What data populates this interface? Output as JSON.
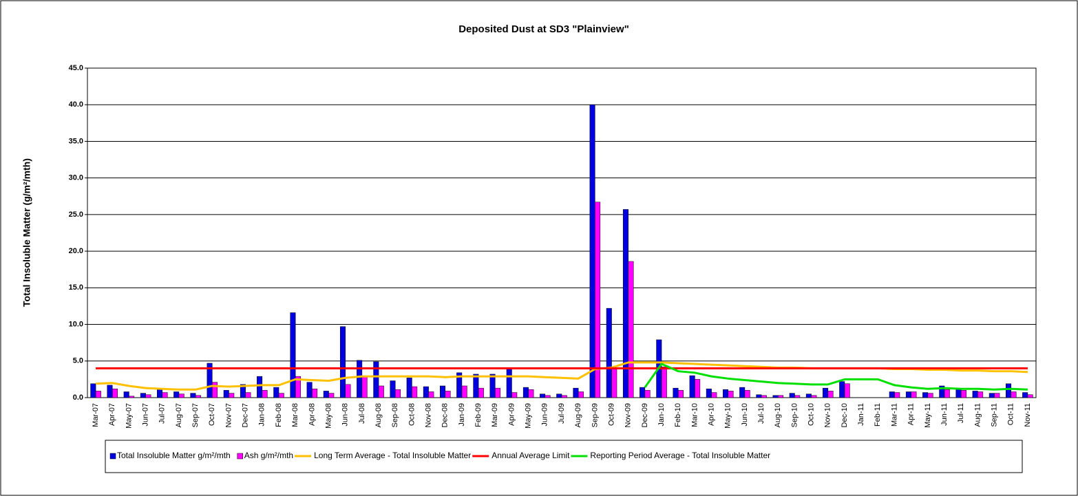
{
  "chart_data": {
    "type": "bar",
    "title": "Deposited Dust at SD3 \"Plainview\"",
    "y_label": "Total Insoluble Matter  (g/m²/mth)",
    "categories": [
      "Mar-07",
      "Apr-07",
      "May-07",
      "Jun-07",
      "Jul-07",
      "Aug-07",
      "Sep-07",
      "Oct-07",
      "Nov-07",
      "Dec-07",
      "Jan-08",
      "Feb-08",
      "Mar-08",
      "Apr-08",
      "May-08",
      "Jun-08",
      "Jul-08",
      "Aug-08",
      "Sep-08",
      "Oct-08",
      "Nov-08",
      "Dec-08",
      "Jan-09",
      "Feb-09",
      "Mar-09",
      "Apr-09",
      "May-09",
      "Jun-09",
      "Jul-09",
      "Aug-09",
      "Sep-09",
      "Oct-09",
      "Nov-09",
      "Dec-09",
      "Jan-10",
      "Feb-10",
      "Mar-10",
      "Apr-10",
      "May-10",
      "Jun-10",
      "Jul-10",
      "Aug-10",
      "Sep-10",
      "Oct-10",
      "Nov-10",
      "Dec-10",
      "Jan-11",
      "Feb-11",
      "Mar-11",
      "Apr-11",
      "May-11",
      "Jun-11",
      "Jul-11",
      "Aug-11",
      "Sep-11",
      "Oct-11",
      "Nov-11"
    ],
    "series": [
      {
        "name": "Total Insoluble Matter  g/m²/mth",
        "type": "bar",
        "color": "#0000e0",
        "values": [
          1.9,
          1.7,
          0.8,
          0.6,
          1.1,
          0.8,
          0.6,
          4.7,
          1.0,
          1.8,
          2.9,
          1.4,
          11.6,
          2.1,
          0.9,
          9.7,
          5.1,
          4.9,
          2.3,
          2.7,
          1.5,
          1.6,
          3.4,
          3.2,
          3.2,
          4.1,
          1.4,
          0.5,
          0.5,
          1.3,
          40.0,
          12.2,
          25.7,
          1.4,
          7.9,
          1.3,
          3.0,
          1.2,
          1.1,
          1.4,
          0.4,
          0.3,
          0.6,
          0.5,
          1.3,
          2.2,
          null,
          null,
          0.8,
          0.8,
          0.7,
          1.6,
          1.1,
          0.9,
          0.6,
          1.9,
          0.7
        ]
      },
      {
        "name": "Ash  g/m²/mth",
        "type": "bar",
        "color": "#ff00ff",
        "values": [
          0.9,
          1.2,
          0.2,
          0.4,
          0.7,
          0.5,
          0.3,
          2.1,
          0.6,
          0.7,
          1.0,
          0.6,
          2.9,
          1.2,
          0.6,
          1.8,
          2.8,
          1.6,
          1.1,
          1.5,
          0.8,
          0.9,
          1.6,
          1.3,
          1.3,
          0.7,
          1.1,
          0.3,
          0.3,
          0.8,
          26.7,
          4.0,
          18.6,
          1.0,
          4.2,
          1.0,
          2.5,
          0.7,
          0.9,
          1.0,
          0.3,
          0.3,
          0.3,
          0.3,
          0.9,
          1.9,
          null,
          null,
          0.7,
          0.8,
          0.6,
          1.1,
          1.0,
          0.8,
          0.6,
          0.8,
          0.4
        ]
      },
      {
        "name": "Long Term Average - Total Insoluble Matter",
        "type": "line",
        "color": "#ffc000",
        "values": [
          1.9,
          2.0,
          1.6,
          1.3,
          1.2,
          1.1,
          1.1,
          1.6,
          1.5,
          1.6,
          1.7,
          1.7,
          2.5,
          2.4,
          2.3,
          2.7,
          2.9,
          2.9,
          2.9,
          2.9,
          2.9,
          2.8,
          2.9,
          2.9,
          2.9,
          2.9,
          2.9,
          2.8,
          2.7,
          2.6,
          3.9,
          4.1,
          4.8,
          4.8,
          4.8,
          4.7,
          4.6,
          4.5,
          4.4,
          4.3,
          4.2,
          4.1,
          4.1,
          4.0,
          4.0,
          4.0,
          4.0,
          4.0,
          3.9,
          3.9,
          3.8,
          3.8,
          3.7,
          3.7,
          3.6,
          3.6,
          3.5
        ]
      },
      {
        "name": "Annual Average Limit",
        "type": "line",
        "color": "#ff0000",
        "values": [
          4,
          4,
          4,
          4,
          4,
          4,
          4,
          4,
          4,
          4,
          4,
          4,
          4,
          4,
          4,
          4,
          4,
          4,
          4,
          4,
          4,
          4,
          4,
          4,
          4,
          4,
          4,
          4,
          4,
          4,
          4,
          4,
          4,
          4,
          4,
          4,
          4,
          4,
          4,
          4,
          4,
          4,
          4,
          4,
          4,
          4,
          4,
          4,
          4,
          4,
          4,
          4,
          4,
          4,
          4,
          4,
          4
        ]
      },
      {
        "name": "Reporting Period Average - Total Insoluble Matter",
        "type": "line",
        "color": "#00e000",
        "values": [
          null,
          null,
          null,
          null,
          null,
          null,
          null,
          null,
          null,
          null,
          null,
          null,
          null,
          null,
          null,
          null,
          null,
          null,
          null,
          null,
          null,
          null,
          null,
          null,
          null,
          null,
          null,
          null,
          null,
          null,
          null,
          null,
          null,
          1.4,
          4.6,
          3.6,
          3.4,
          2.9,
          2.6,
          2.4,
          2.2,
          2.0,
          1.9,
          1.8,
          1.8,
          2.5,
          2.5,
          2.5,
          1.7,
          1.4,
          1.2,
          1.3,
          1.2,
          1.2,
          1.1,
          1.2,
          1.1
        ]
      }
    ],
    "ylim": [
      0,
      45
    ],
    "yticks": [
      {
        "value": 0,
        "label": "0.0"
      },
      {
        "value": 5,
        "label": "5.0"
      },
      {
        "value": 10,
        "label": "10.0"
      },
      {
        "value": 15,
        "label": "15.0"
      },
      {
        "value": 20,
        "label": "20.0"
      },
      {
        "value": 25,
        "label": "25.0"
      },
      {
        "value": 30,
        "label": "30.0"
      },
      {
        "value": 35,
        "label": "35.0"
      },
      {
        "value": 40,
        "label": "40.0"
      },
      {
        "value": 45,
        "label": "45.0"
      }
    ],
    "grid": true,
    "legend": "bottom"
  }
}
